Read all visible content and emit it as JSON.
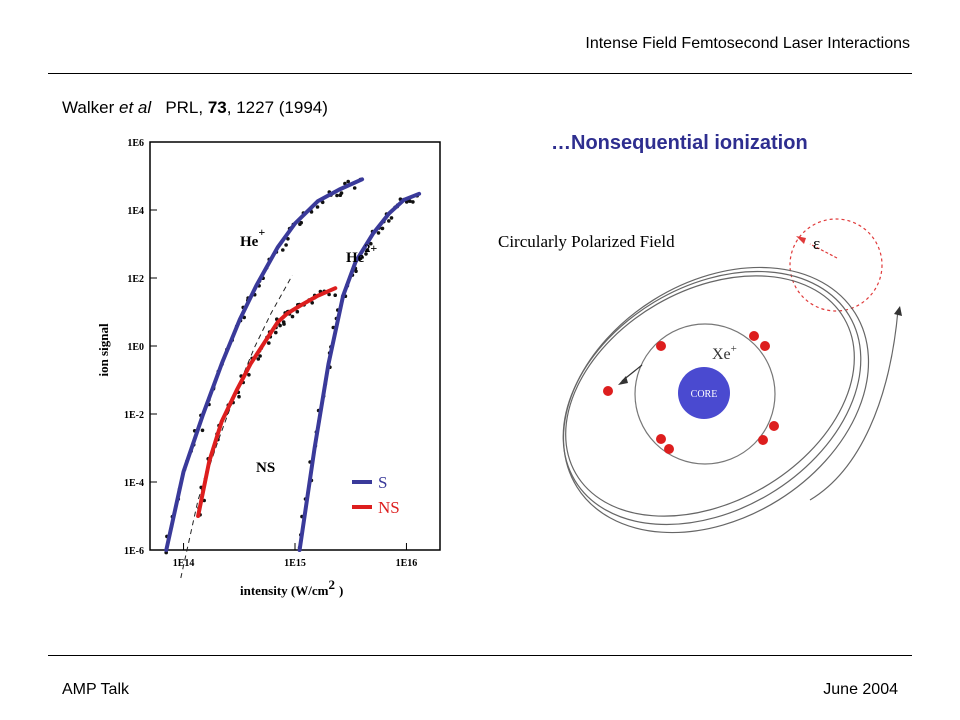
{
  "header": {
    "title": "Intense Field Femtosecond Laser Interactions"
  },
  "citation": {
    "author": "Walker",
    "etal": "et al",
    "journal": "PRL,",
    "volume": "73",
    "rest": ", 1227 (1994)"
  },
  "heading": "…Nonsequential ionization",
  "footer": {
    "left": "AMP Talk",
    "right": "June 2004"
  },
  "colors": {
    "sequential": "#3a3a9a",
    "nonsequential": "#dd1e1e",
    "heading": "#2e2e8f",
    "core": "#4a4ad0"
  },
  "chart_data": {
    "type": "line",
    "scale": "log-log",
    "xlabel": "intensity (W/cm",
    "xlabel_sup": "2",
    "xlabel_close": ")",
    "ylabel": "ion signal",
    "xlim": [
      50000000000000.0,
      2e+16
    ],
    "ylim": [
      1e-06,
      1000000.0
    ],
    "x_ticks": [
      "1E14",
      "1E15",
      "1E16"
    ],
    "y_ticks": [
      "1E6",
      "1E4",
      "1E2",
      "1E0",
      "1E-2",
      "1E-4",
      "1E-6"
    ],
    "ion_labels": {
      "he_plus": "He",
      "he_plus_sup": "+",
      "he_2plus": "He",
      "he_2plus_sup": "2+",
      "ns": "NS"
    },
    "legend": {
      "position": "bottom-right",
      "entries": [
        {
          "label": "S",
          "color": "#3a3a9a"
        },
        {
          "label": "NS",
          "color": "#dd1e1e"
        }
      ]
    },
    "series": [
      {
        "name": "S",
        "points": [
          [
            70000000000000.0,
            1e-06
          ],
          [
            100000000000000.0,
            0.0002
          ],
          [
            150000000000000.0,
            0.01
          ],
          [
            220000000000000.0,
            0.3
          ],
          [
            320000000000000.0,
            6
          ],
          [
            450000000000000.0,
            60.0
          ],
          [
            700000000000000.0,
            800.0
          ],
          [
            1000000000000000.0,
            4000.0
          ],
          [
            1600000000000000.0,
            18000.0
          ],
          [
            2500000000000000.0,
            40000.0
          ],
          [
            4000000000000000.0,
            80000.0
          ]
        ]
      },
      {
        "name": "S",
        "points": [
          [
            1100000000000000.0,
            1e-06
          ],
          [
            1500000000000000.0,
            0.001
          ],
          [
            2000000000000000.0,
            0.3
          ],
          [
            2700000000000000.0,
            30.0
          ],
          [
            3500000000000000.0,
            300.0
          ],
          [
            5000000000000000.0,
            2000.0
          ],
          [
            7000000000000000.0,
            8000.0
          ],
          [
            9500000000000000.0,
            20000.0
          ],
          [
            1.3e+16,
            30000.0
          ]
        ]
      },
      {
        "name": "NS",
        "points": [
          [
            135000000000000.0,
            1e-05
          ],
          [
            170000000000000.0,
            0.0004
          ],
          [
            220000000000000.0,
            0.006
          ],
          [
            300000000000000.0,
            0.05
          ],
          [
            400000000000000.0,
            0.3
          ],
          [
            550000000000000.0,
            1.5
          ],
          [
            700000000000000.0,
            5
          ],
          [
            850000000000000.0,
            9
          ],
          [
            1100000000000000.0,
            15.0
          ],
          [
            1600000000000000.0,
            30.0
          ],
          [
            2300000000000000.0,
            50.0
          ]
        ]
      }
    ]
  },
  "diagram": {
    "title": "Circularly Polarized Field",
    "ion_label": "Xe",
    "ion_sup": "+",
    "core_label": "CORE",
    "field_symbol": "ε"
  }
}
